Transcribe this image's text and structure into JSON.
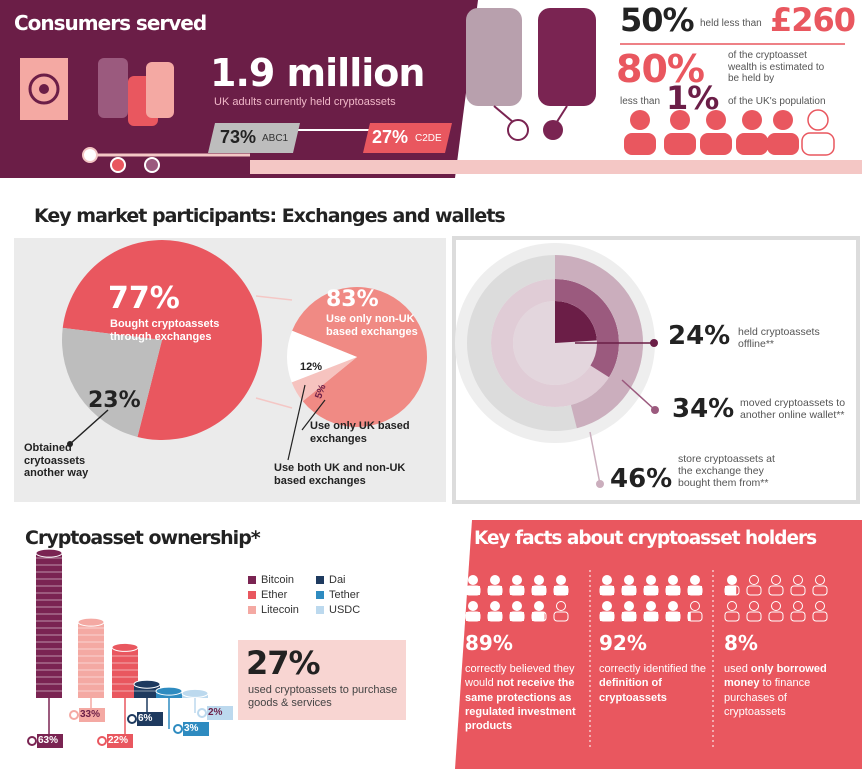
{
  "consumers": {
    "title": "Consumers served",
    "headline": "1.9 million",
    "subtitle": "UK adults currently held cryptoassets",
    "abc1_pct": "73%",
    "abc1_label": "ABC1",
    "c2de_pct": "27%",
    "c2de_label": "C2DE"
  },
  "wealth": {
    "pct50": "50%",
    "held_less_than": "held less than",
    "amount": "£260",
    "pct80": "80%",
    "estimate": "of the cryptoasset wealth is estimated to be held by",
    "less_than": "less than",
    "pct1": "1%",
    "population": "of the UK's population"
  },
  "participants": {
    "title": "Key market participants: Exchanges and wallets",
    "exchanges_pie": [
      {
        "value": 77,
        "label": "77%",
        "text": "Bought cryptoassets through exchanges",
        "color": "#e9575f"
      },
      {
        "value": 23,
        "label": "23%",
        "text": "Obtained crytoassets another way",
        "color": "#bdbdbd"
      }
    ],
    "location_pie": [
      {
        "value": 83,
        "label": "83%",
        "text": "Use only non-UK based exchanges",
        "color": "#f08a84"
      },
      {
        "value": 12,
        "label": "12%",
        "text": "Use both UK and non-UK based exchanges",
        "color": "#ffffff"
      },
      {
        "value": 5,
        "label": "5%",
        "text": "Use only UK based exchanges",
        "color": "#f6c3bf"
      }
    ],
    "wallets": [
      {
        "value": 24,
        "label": "24%",
        "text": "held cryptoassets offline**",
        "color": "#6b1e47"
      },
      {
        "value": 34,
        "label": "34%",
        "text": "moved cryptoassets to another online wallet**",
        "color": "#9b5a7e"
      },
      {
        "value": 46,
        "label": "46%",
        "text": "store cryptoassets at the exchange they bought them from**",
        "color": "#cbaebd"
      }
    ]
  },
  "ownership": {
    "title": "Cryptoasset ownership*",
    "assets": [
      {
        "name": "Bitcoin",
        "value": 63,
        "label": "63%",
        "color": "#7a2452"
      },
      {
        "name": "Ether",
        "value": 22,
        "label": "22%",
        "color": "#e9575f"
      },
      {
        "name": "Litecoin",
        "value": 33,
        "label": "33%",
        "color": "#f4a9a3"
      },
      {
        "name": "Dai",
        "value": 6,
        "label": "6%",
        "color": "#1e3a5f"
      },
      {
        "name": "Tether",
        "value": 3,
        "label": "3%",
        "color": "#2e8bc0"
      },
      {
        "name": "USDC",
        "value": 2,
        "label": "2%",
        "color": "#bcd9ee"
      }
    ],
    "purchase_pct": "27%",
    "purchase_text": "used cryptoassets to purchase goods & services"
  },
  "key_facts": {
    "title": "Key facts about cryptoasset holders",
    "facts": [
      {
        "value": 89,
        "label": "89%",
        "text": [
          "correctly believed they would ",
          "not receive the same protections as regulated investment products"
        ]
      },
      {
        "value": 92,
        "label": "92%",
        "text": [
          "correctly identified the ",
          "definition of cryptoassets"
        ]
      },
      {
        "value": 8,
        "label": "8%",
        "text": [
          "used ",
          "only borrowed money",
          " to finance purchases of cryptoassets"
        ]
      }
    ]
  }
}
